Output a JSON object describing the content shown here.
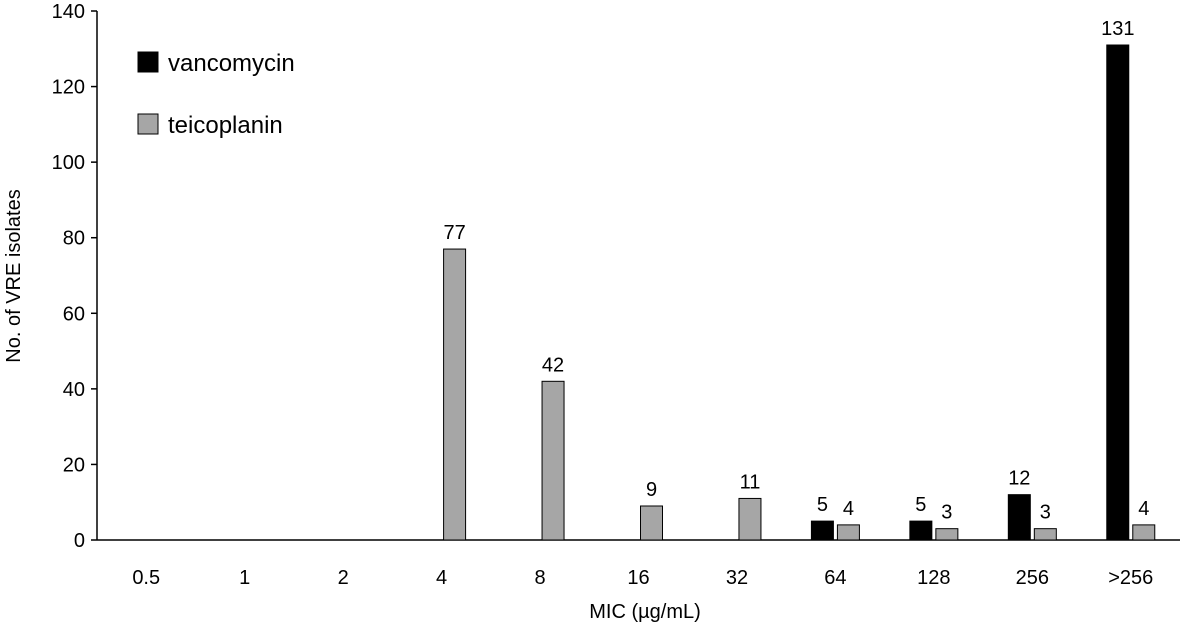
{
  "chart_data": {
    "type": "bar",
    "title": "",
    "xlabel": "MIC (µg/mL)",
    "ylabel": "No. of VRE isolates",
    "ylim": [
      0,
      140
    ],
    "yticks": [
      0,
      20,
      40,
      60,
      80,
      100,
      120,
      140
    ],
    "categories": [
      "0.5",
      "1",
      "2",
      "4",
      "8",
      "16",
      "32",
      "64",
      "128",
      "256",
      ">256"
    ],
    "series": [
      {
        "name": "vancomycin",
        "color": "#000000",
        "values": [
          0,
          0,
          0,
          0,
          0,
          0,
          0,
          5,
          5,
          12,
          131
        ]
      },
      {
        "name": "teicoplanin",
        "color": "#a6a6a6",
        "values": [
          0,
          0,
          0,
          77,
          42,
          9,
          11,
          4,
          3,
          3,
          4
        ]
      }
    ],
    "legend": "top-left",
    "grid": false
  }
}
